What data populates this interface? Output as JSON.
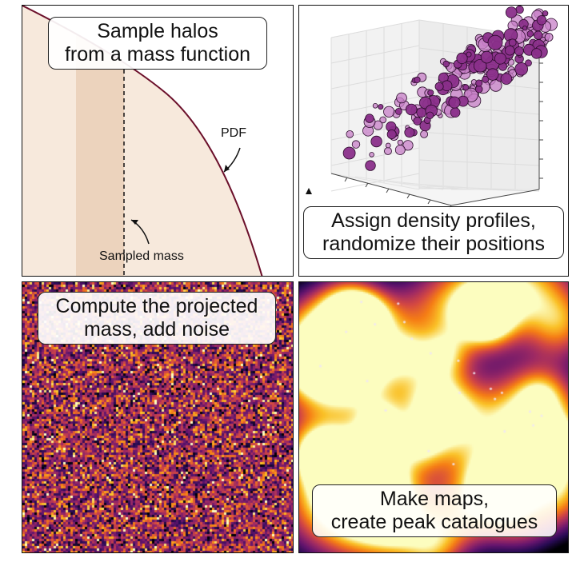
{
  "panels": {
    "sample": {
      "caption": [
        "Sample halos",
        "from a mass function"
      ],
      "pdf_label": "PDF",
      "sampled_label": "Sampled mass"
    },
    "assign": {
      "caption": [
        "Assign density profiles,",
        "randomize their positions"
      ]
    },
    "project": {
      "caption": [
        "Compute the projected",
        "mass, add noise"
      ]
    },
    "maps": {
      "caption": [
        "Make maps,",
        "create peak catalogues"
      ]
    }
  },
  "colors": {
    "pdf_curve": "#6b0f2a",
    "pdf_fill": "#f7e9dc",
    "sample_band": "#ecd3bd",
    "point_fill": "#c77fc7",
    "point_dark": "#8a2f8a",
    "map_dark": "#000004",
    "map_mid": "#b73779",
    "map_bright": "#fcfdbf"
  }
}
